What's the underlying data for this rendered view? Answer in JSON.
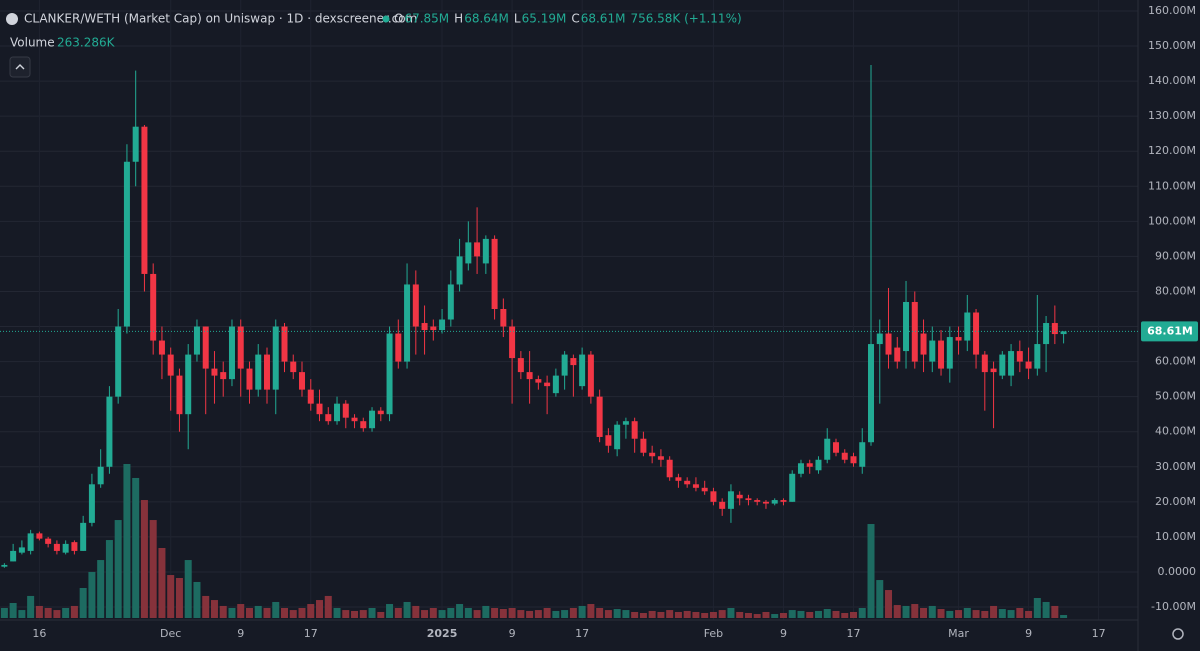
{
  "header": {
    "title": "CLANKER/WETH (Market Cap) on Uniswap · 1D · dexscreener.com",
    "ohlc": [
      {
        "key": "O",
        "value": "67.85M"
      },
      {
        "key": "H",
        "value": "68.64M"
      },
      {
        "key": "L",
        "value": "65.19M"
      },
      {
        "key": "C",
        "value": "68.61M"
      }
    ],
    "change": "756.58K (+1.11%)",
    "volume_name": "Volume",
    "volume_value": "263.286K"
  },
  "chart_data": {
    "type": "candlestick",
    "categories": [
      null,
      null,
      null,
      null,
      "16",
      null,
      null,
      null,
      null,
      null,
      null,
      null,
      null,
      null,
      null,
      null,
      null,
      null,
      null,
      "Dec",
      null,
      null,
      null,
      null,
      null,
      null,
      null,
      "9",
      null,
      null,
      null,
      null,
      null,
      null,
      null,
      "17",
      null,
      null,
      null,
      null,
      null,
      null,
      null,
      null,
      null,
      null,
      null,
      null,
      null,
      null,
      "2025",
      null,
      null,
      null,
      null,
      null,
      null,
      null,
      "9",
      null,
      null,
      null,
      null,
      null,
      null,
      null,
      "17",
      null,
      null,
      null,
      null,
      null,
      null,
      null,
      null,
      null,
      null,
      null,
      null,
      null,
      null,
      "Feb",
      null,
      null,
      null,
      null,
      null,
      null,
      null,
      "9",
      null,
      null,
      null,
      null,
      null,
      null,
      null,
      "17",
      null,
      null,
      null,
      null,
      null,
      null,
      null,
      null,
      null,
      null,
      null,
      "Mar",
      null,
      null,
      null,
      null,
      null,
      null,
      null,
      "9",
      null,
      null,
      null,
      null,
      null,
      null,
      null,
      "17",
      null,
      null,
      null,
      null
    ],
    "open": [
      1.5,
      3,
      5.5,
      6,
      11,
      9.5,
      8,
      5.5,
      8.5,
      6,
      14,
      25,
      30,
      50,
      70,
      117,
      127,
      85,
      66,
      62,
      56,
      45,
      62,
      70,
      58,
      57,
      55,
      70,
      58,
      52,
      62,
      52,
      70,
      60,
      57,
      52,
      48,
      45,
      43,
      48,
      44,
      43,
      41,
      46,
      45,
      68,
      60,
      82,
      71,
      70,
      69,
      72,
      82,
      88,
      94,
      88,
      95,
      75,
      70,
      61,
      57,
      55,
      54,
      51,
      56,
      61,
      53,
      62,
      50,
      39,
      35,
      42,
      43,
      38,
      34,
      33,
      32,
      27,
      26,
      25,
      24,
      23,
      20,
      18,
      22,
      21,
      20.5,
      20,
      19.5,
      20.5,
      20,
      28,
      31,
      29,
      32,
      37,
      34,
      33,
      30,
      37,
      65,
      68,
      64,
      63,
      77,
      68,
      60,
      66,
      58,
      67,
      66,
      74,
      62,
      58,
      56,
      56,
      63,
      60,
      58,
      65,
      71,
      67.85,
      null,
      null,
      null,
      null,
      null,
      null,
      null,
      null
    ],
    "high": [
      2.5,
      8,
      9,
      12,
      11.5,
      10,
      9,
      9,
      9,
      16,
      28,
      35,
      53,
      75,
      122,
      143,
      127.5,
      88,
      70,
      64,
      58,
      65,
      72,
      70,
      63,
      60,
      72,
      72,
      60,
      65,
      64,
      72,
      71,
      62,
      60,
      55,
      52,
      47,
      50,
      49,
      45,
      44,
      47,
      47,
      70,
      72,
      88,
      86,
      76,
      72,
      75,
      86,
      95,
      100,
      104,
      96,
      96,
      78,
      72,
      63,
      63,
      56,
      56,
      58,
      63,
      62,
      64,
      63,
      52,
      41,
      43,
      44,
      44,
      40,
      36,
      35,
      33,
      28,
      27,
      27,
      26,
      24,
      21,
      25,
      23,
      22,
      21,
      20.5,
      21,
      21,
      29,
      32,
      32,
      33,
      41,
      38,
      35,
      34,
      41,
      144.6,
      72,
      81,
      67,
      83,
      80,
      72,
      70,
      69,
      70,
      70,
      79,
      75,
      63,
      60,
      63,
      65,
      66,
      64,
      79,
      73,
      76,
      68.64,
      null,
      null,
      null,
      null,
      null,
      null,
      null,
      null
    ],
    "low": [
      1.2,
      3,
      5,
      5,
      9,
      7,
      5,
      5,
      5,
      6,
      13,
      24,
      28,
      48,
      68,
      110,
      80,
      62,
      55,
      46,
      40,
      35,
      60,
      45,
      48,
      50,
      53,
      50,
      48,
      50,
      48,
      45,
      57,
      55,
      50,
      46,
      43,
      42,
      42,
      41,
      41,
      40,
      40,
      43,
      43,
      58,
      58,
      62,
      62,
      66,
      68,
      70,
      80,
      86,
      85,
      85,
      72,
      67,
      48,
      55,
      48,
      52,
      45,
      50,
      52,
      50,
      52,
      48,
      37,
      34,
      33,
      38,
      34,
      33,
      31,
      30,
      26,
      24,
      24,
      23,
      22,
      19,
      16,
      14,
      19,
      19,
      19,
      18,
      19,
      19,
      20,
      27,
      28,
      28,
      31,
      33,
      31,
      30,
      28,
      36,
      48,
      58,
      58,
      58,
      58,
      57,
      57,
      56,
      54,
      62,
      63,
      58,
      46,
      41,
      55,
      53,
      57,
      55,
      56,
      57,
      65,
      65.19,
      null,
      null,
      null,
      null,
      null,
      null,
      null,
      null
    ],
    "close": [
      2,
      6,
      7,
      11,
      9.5,
      8,
      6,
      8,
      6,
      14,
      25,
      30,
      50,
      70,
      117,
      127,
      85,
      66,
      62,
      56,
      45,
      62,
      70,
      58,
      56,
      55,
      70,
      58,
      52,
      62,
      52,
      70,
      60,
      57,
      52,
      48,
      45,
      43,
      48,
      44,
      43,
      41,
      46,
      45,
      68,
      60,
      82,
      70,
      69,
      69,
      72,
      82,
      90,
      94,
      90,
      95,
      75,
      70,
      61,
      57,
      55,
      54,
      53,
      56,
      62,
      59,
      62,
      50,
      38.5,
      36,
      42,
      43,
      38,
      34,
      33,
      32,
      27,
      26,
      25,
      24,
      23,
      20,
      18,
      23,
      21,
      20.5,
      20,
      19.5,
      20.5,
      20,
      28,
      31,
      30,
      32,
      38,
      34,
      32,
      31,
      37,
      65,
      68,
      62,
      60,
      77,
      60,
      62,
      66,
      58,
      67,
      66,
      74,
      62,
      57,
      57,
      62,
      63,
      60,
      58,
      65,
      71,
      67.85,
      68.61,
      null,
      null,
      null,
      null,
      null,
      null,
      null,
      null
    ],
    "volume": [
      880,
      1320,
      700,
      1940,
      1060,
      880,
      700,
      880,
      1060,
      2640,
      4050,
      5100,
      6860,
      8620,
      13550,
      12320,
      10380,
      8620,
      6160,
      3780,
      3520,
      5100,
      3170,
      1940,
      1580,
      1060,
      880,
      1230,
      880,
      1060,
      880,
      1410,
      880,
      700,
      880,
      1230,
      1580,
      1940,
      880,
      700,
      620,
      700,
      880,
      530,
      1230,
      880,
      1410,
      1060,
      700,
      880,
      700,
      880,
      1230,
      880,
      700,
      1060,
      880,
      790,
      880,
      700,
      620,
      700,
      880,
      620,
      700,
      880,
      1060,
      1230,
      880,
      700,
      790,
      700,
      530,
      440,
      620,
      530,
      700,
      530,
      620,
      530,
      440,
      530,
      700,
      880,
      530,
      440,
      350,
      530,
      350,
      440,
      700,
      620,
      530,
      620,
      790,
      620,
      440,
      530,
      880,
      8270,
      3340,
      2460,
      1140,
      1060,
      1230,
      880,
      1060,
      790,
      620,
      700,
      880,
      700,
      620,
      1060,
      790,
      700,
      880,
      620,
      1760,
      1410,
      1060,
      263.286,
      null,
      null,
      null,
      null,
      null,
      null,
      null,
      null
    ],
    "up_color": "#22ab94",
    "down_color": "#f23645",
    "up_volume_color": "#1d6b61",
    "down_volume_color": "#86323b",
    "ylim": [
      -10,
      160
    ],
    "yticks": [
      {
        "value": 160,
        "label": "160.00M"
      },
      {
        "value": 150,
        "label": "150.00M"
      },
      {
        "value": 140,
        "label": "140.00M"
      },
      {
        "value": 130,
        "label": "130.00M"
      },
      {
        "value": 120,
        "label": "120.00M"
      },
      {
        "value": 110,
        "label": "110.00M"
      },
      {
        "value": 100,
        "label": "100.00M"
      },
      {
        "value": 90,
        "label": "90.00M"
      },
      {
        "value": 80,
        "label": "80.00M"
      },
      {
        "value": 70,
        "label": "70.00M"
      },
      {
        "value": 60,
        "label": "60.00M"
      },
      {
        "value": 50,
        "label": "50.00M"
      },
      {
        "value": 40,
        "label": "40.00M"
      },
      {
        "value": 30,
        "label": "30.00M"
      },
      {
        "value": 20,
        "label": "20.00M"
      },
      {
        "value": 10,
        "label": "10.00M"
      },
      {
        "value": 0,
        "label": "0.0000"
      },
      {
        "value": -10,
        "label": "-10.00M"
      }
    ],
    "grid": true,
    "price_line": {
      "value": 68.61,
      "label": "68.61M"
    }
  }
}
